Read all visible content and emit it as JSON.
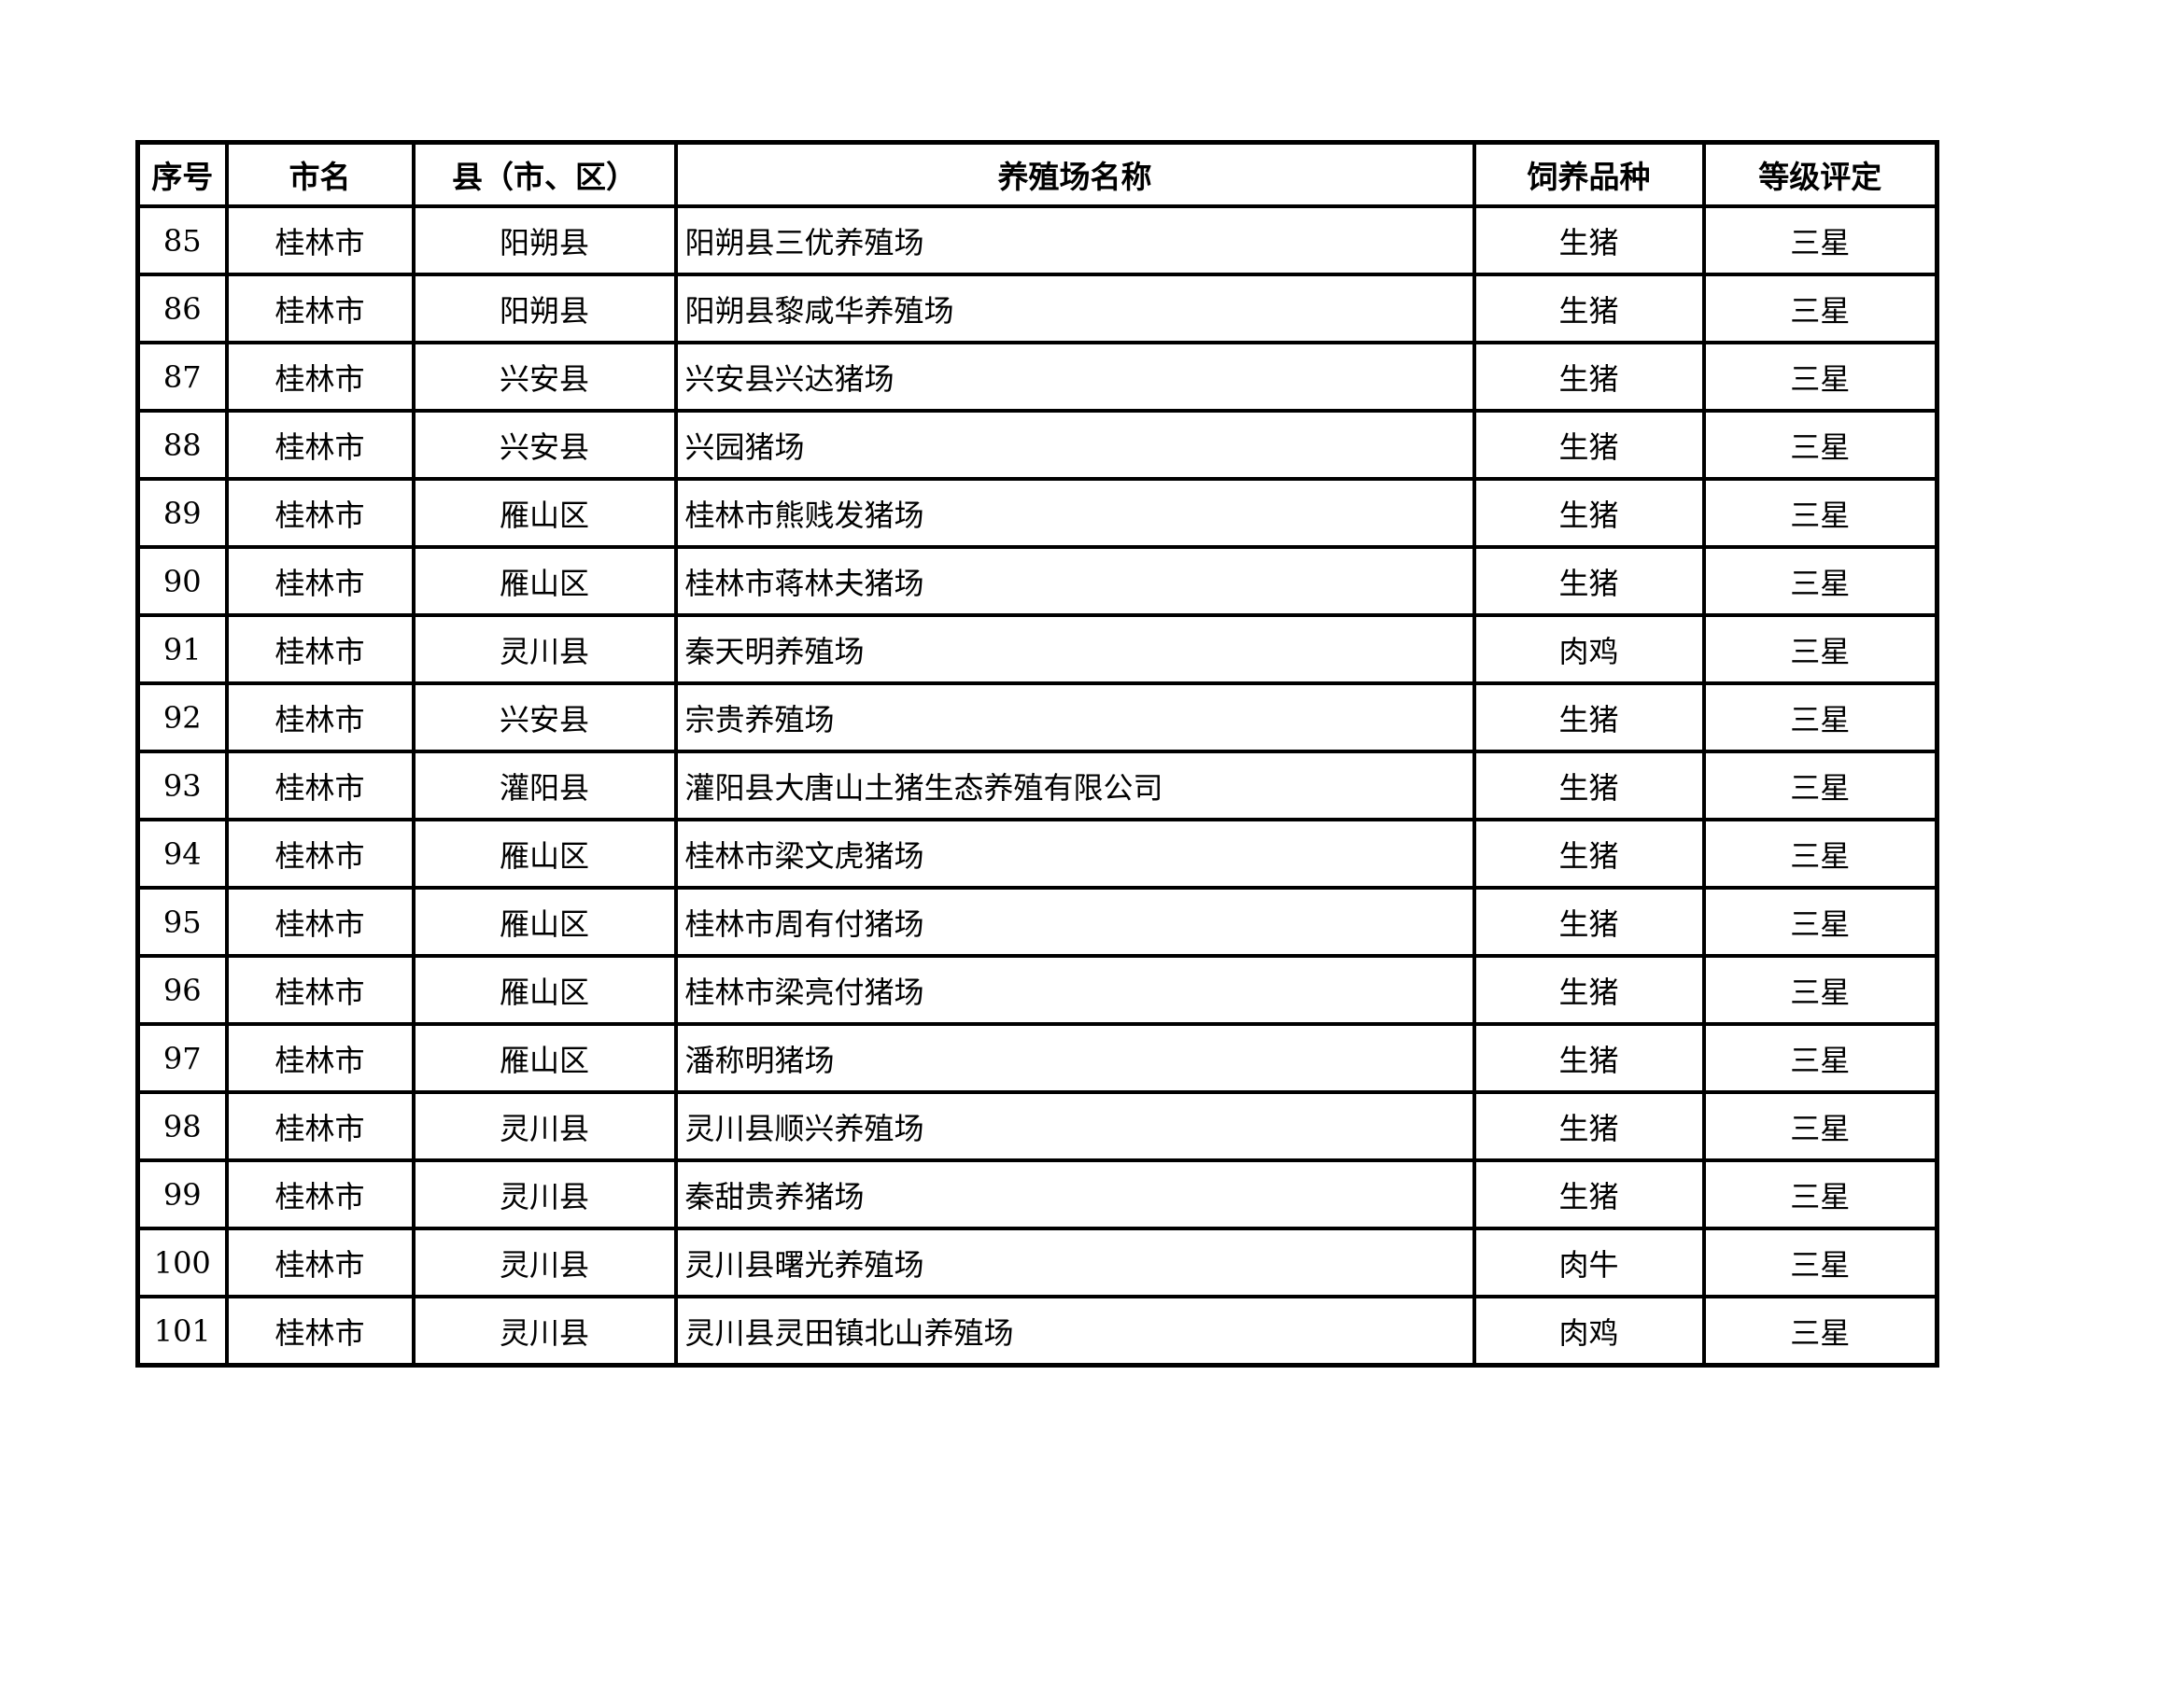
{
  "table": {
    "headers": [
      "序号",
      "市名",
      "县（市、区）",
      "养殖场名称",
      "饲养品种",
      "等级评定"
    ],
    "rows": [
      [
        "85",
        "桂林市",
        "阳朔县",
        "阳朔县三优养殖场",
        "生猪",
        "三星"
      ],
      [
        "86",
        "桂林市",
        "阳朔县",
        "阳朔县黎咸华养殖场",
        "生猪",
        "三星"
      ],
      [
        "87",
        "桂林市",
        "兴安县",
        "兴安县兴达猪场",
        "生猪",
        "三星"
      ],
      [
        "88",
        "桂林市",
        "兴安县",
        "兴园猪场",
        "生猪",
        "三星"
      ],
      [
        "89",
        "桂林市",
        "雁山区",
        "桂林市熊贱发猪场",
        "生猪",
        "三星"
      ],
      [
        "90",
        "桂林市",
        "雁山区",
        "桂林市蒋林夫猪场",
        "生猪",
        "三星"
      ],
      [
        "91",
        "桂林市",
        "灵川县",
        "秦天明养殖场",
        "肉鸡",
        "三星"
      ],
      [
        "92",
        "桂林市",
        "兴安县",
        "宗贵养殖场",
        "生猪",
        "三星"
      ],
      [
        "93",
        "桂林市",
        "灌阳县",
        "灌阳县大唐山土猪生态养殖有限公司",
        "生猪",
        "三星"
      ],
      [
        "94",
        "桂林市",
        "雁山区",
        "桂林市梁文虎猪场",
        "生猪",
        "三星"
      ],
      [
        "95",
        "桂林市",
        "雁山区",
        "桂林市周有付猪场",
        "生猪",
        "三星"
      ],
      [
        "96",
        "桂林市",
        "雁山区",
        "桂林市梁亮付猪场",
        "生猪",
        "三星"
      ],
      [
        "97",
        "桂林市",
        "雁山区",
        "潘称明猪场",
        "生猪",
        "三星"
      ],
      [
        "98",
        "桂林市",
        "灵川县",
        "灵川县顺兴养殖场",
        "生猪",
        "三星"
      ],
      [
        "99",
        "桂林市",
        "灵川县",
        "秦甜贵养猪场",
        "生猪",
        "三星"
      ],
      [
        "100",
        "桂林市",
        "灵川县",
        "灵川县曙光养殖场",
        "肉牛",
        "三星"
      ],
      [
        "101",
        "桂林市",
        "灵川县",
        "灵川县灵田镇北山养殖场",
        "肉鸡",
        "三星"
      ]
    ]
  }
}
